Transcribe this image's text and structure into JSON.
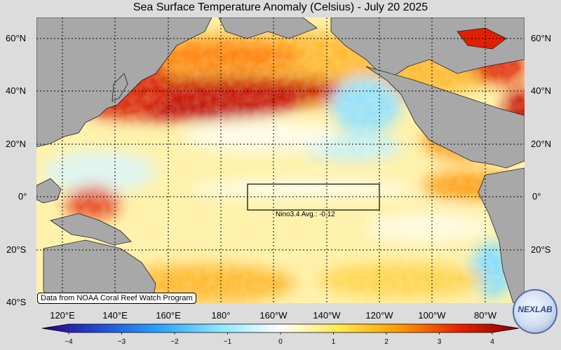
{
  "title": "Sea Surface Temperature Anomaly (Celsius) - July 20 2025",
  "lat_labels": [
    "60°N",
    "40°N",
    "20°N",
    "0°",
    "20°S",
    "40°S"
  ],
  "lon_labels": [
    "120°E",
    "140°E",
    "160°E",
    "180°",
    "160°W",
    "140°W",
    "120°W",
    "100°W",
    "80°W"
  ],
  "nino_box_label": "Nino3.4 Avg.: -0.12",
  "credit": "Data from NOAA Coral Reef Watch Program",
  "colorbar": {
    "ticks": [
      "−4",
      "−3",
      "−2",
      "−1",
      "0",
      "1",
      "2",
      "3",
      "4"
    ],
    "min": -4,
    "max": 4,
    "colors": [
      "#2a0088",
      "#1f4fd6",
      "#2aa6ff",
      "#8fe8ff",
      "#ffffff",
      "#ffe84a",
      "#ff9a00",
      "#e82000",
      "#8a0000"
    ]
  },
  "logo": {
    "text": "NEXLAB"
  },
  "colors": {
    "land": "#a8a8a8",
    "background": "#dcdcdc",
    "warm_strong": "#b80000",
    "warm": "#ff8a00",
    "mild": "#ffe060",
    "cool": "#66d8ff"
  }
}
